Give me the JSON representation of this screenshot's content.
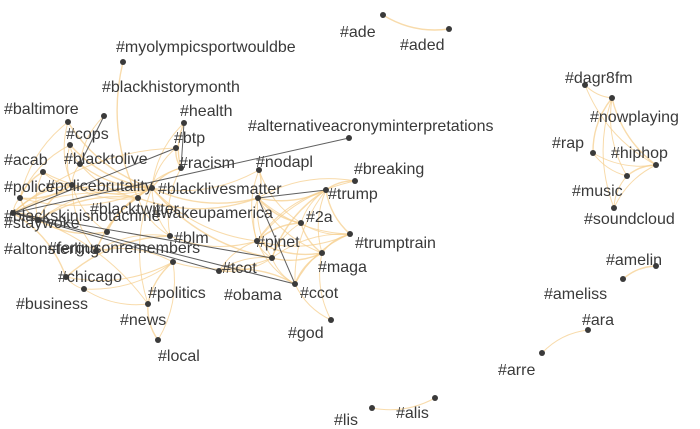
{
  "graph": {
    "edge_color": "#f5cf8f",
    "dark_edge_color": "#444444",
    "node_color": "#3a3a3a",
    "label_color": "#3a3a3a",
    "nodes": [
      {
        "id": "myolympicsportwouldbe",
        "label": "#myolympicsportwouldbe"
      },
      {
        "id": "blackhistorymonth",
        "label": "#blackhistorymonth"
      },
      {
        "id": "baltimore",
        "label": "#baltimore"
      },
      {
        "id": "health",
        "label": "#health"
      },
      {
        "id": "cops",
        "label": "#cops"
      },
      {
        "id": "btp",
        "label": "#btp"
      },
      {
        "id": "acab",
        "label": "#acab"
      },
      {
        "id": "blacktolive",
        "label": "#blacktolive"
      },
      {
        "id": "racism",
        "label": "#racism"
      },
      {
        "id": "police",
        "label": "#police"
      },
      {
        "id": "policebrutality",
        "label": "#policebrutality"
      },
      {
        "id": "blacklivesmatter",
        "label": "#blacklivesmatter"
      },
      {
        "id": "blackskinisnotacrime",
        "label": "#blackskinisnotacrime"
      },
      {
        "id": "blacktwitter",
        "label": "#blacktwitter"
      },
      {
        "id": "staywoke",
        "label": "#staywoke"
      },
      {
        "id": "wakeupamerica",
        "label": "#wakeupamerica"
      },
      {
        "id": "altonsterling",
        "label": "#altonsterling"
      },
      {
        "id": "fergusonremembers",
        "label": "#fergusonremembers"
      },
      {
        "id": "blm",
        "label": "#blm"
      },
      {
        "id": "chicago",
        "label": "#chicago"
      },
      {
        "id": "business",
        "label": "#business"
      },
      {
        "id": "politics",
        "label": "#politics"
      },
      {
        "id": "news",
        "label": "#news"
      },
      {
        "id": "local",
        "label": "#local"
      },
      {
        "id": "alternativeacronyminterpretations",
        "label": "#alternativeacronyminterpretations"
      },
      {
        "id": "nodapl",
        "label": "#nodapl"
      },
      {
        "id": "breaking",
        "label": "#breaking"
      },
      {
        "id": "trump",
        "label": "#trump"
      },
      {
        "id": "2a",
        "label": "#2a"
      },
      {
        "id": "pjnet",
        "label": "#pjnet"
      },
      {
        "id": "trumptrain",
        "label": "#trumptrain"
      },
      {
        "id": "tcot",
        "label": "#tcot"
      },
      {
        "id": "maga",
        "label": "#maga"
      },
      {
        "id": "obama",
        "label": "#obama"
      },
      {
        "id": "ccot",
        "label": "#ccot"
      },
      {
        "id": "god",
        "label": "#god"
      },
      {
        "id": "ade",
        "label": "#ade"
      },
      {
        "id": "aded",
        "label": "#aded"
      },
      {
        "id": "dagr8fm",
        "label": "#dagr8fm"
      },
      {
        "id": "nowplaying",
        "label": "#nowplaying"
      },
      {
        "id": "rap",
        "label": "#rap"
      },
      {
        "id": "hiphop",
        "label": "#hiphop"
      },
      {
        "id": "music",
        "label": "#music"
      },
      {
        "id": "soundcloud",
        "label": "#soundcloud"
      },
      {
        "id": "amelin",
        "label": "#amelin"
      },
      {
        "id": "ameliss",
        "label": "#ameliss"
      },
      {
        "id": "ara",
        "label": "#ara"
      },
      {
        "id": "arre",
        "label": "#arre"
      },
      {
        "id": "lis",
        "label": "#lis"
      },
      {
        "id": "alis",
        "label": "#alis"
      }
    ],
    "edges": [
      [
        "ade",
        "aded"
      ],
      [
        "lis",
        "alis"
      ],
      [
        "ara",
        "arre"
      ],
      [
        "amelin",
        "ameliss"
      ],
      [
        "dagr8fm",
        "nowplaying"
      ],
      [
        "dagr8fm",
        "hiphop"
      ],
      [
        "nowplaying",
        "hiphop"
      ],
      [
        "nowplaying",
        "music"
      ],
      [
        "nowplaying",
        "soundcloud"
      ],
      [
        "nowplaying",
        "rap"
      ],
      [
        "rap",
        "hiphop"
      ],
      [
        "rap",
        "music"
      ],
      [
        "hiphop",
        "music"
      ],
      [
        "hiphop",
        "soundcloud"
      ],
      [
        "music",
        "soundcloud"
      ],
      [
        "myolympicsportwouldbe",
        "blacktwitter"
      ],
      [
        "blackhistorymonth",
        "blacktolive"
      ],
      [
        "baltimore",
        "policebrutality"
      ],
      [
        "baltimore",
        "blacklivesmatter"
      ],
      [
        "baltimore",
        "police"
      ],
      [
        "health",
        "blacklivesmatter"
      ],
      [
        "health",
        "racism"
      ],
      [
        "cops",
        "policebrutality"
      ],
      [
        "cops",
        "police"
      ],
      [
        "cops",
        "blacklivesmatter"
      ],
      [
        "cops",
        "blacktolive"
      ],
      [
        "btp",
        "blacklivesmatter"
      ],
      [
        "btp",
        "racism"
      ],
      [
        "btp",
        "blackskinisnotacrime"
      ],
      [
        "acab",
        "policebrutality"
      ],
      [
        "acab",
        "police"
      ],
      [
        "acab",
        "blacklivesmatter"
      ],
      [
        "acab",
        "staywoke"
      ],
      [
        "blacktolive",
        "blacklivesmatter"
      ],
      [
        "blacktolive",
        "policebrutality"
      ],
      [
        "blacktolive",
        "blacktwitter"
      ],
      [
        "racism",
        "blacklivesmatter"
      ],
      [
        "racism",
        "blm"
      ],
      [
        "racism",
        "blacktwitter"
      ],
      [
        "police",
        "policebrutality"
      ],
      [
        "police",
        "blacklivesmatter"
      ],
      [
        "police",
        "blackskinisnotacrime"
      ],
      [
        "police",
        "staywoke"
      ],
      [
        "policebrutality",
        "blacklivesmatter"
      ],
      [
        "policebrutality",
        "blacktwitter"
      ],
      [
        "policebrutality",
        "blackskinisnotacrime"
      ],
      [
        "policebrutality",
        "altonsterling"
      ],
      [
        "policebrutality",
        "fergusonremembers"
      ],
      [
        "policebrutality",
        "staywoke"
      ],
      [
        "blacklivesmatter",
        "blacktwitter"
      ],
      [
        "blacklivesmatter",
        "blm"
      ],
      [
        "blacklivesmatter",
        "wakeupamerica"
      ],
      [
        "blacklivesmatter",
        "staywoke"
      ],
      [
        "blacklivesmatter",
        "blackskinisnotacrime"
      ],
      [
        "blacklivesmatter",
        "altonsterling"
      ],
      [
        "blacklivesmatter",
        "fergusonremembers"
      ],
      [
        "blacklivesmatter",
        "nodapl"
      ],
      [
        "blacklivesmatter",
        "tcot"
      ],
      [
        "blacklivesmatter",
        "pjnet"
      ],
      [
        "blacklivesmatter",
        "news"
      ],
      [
        "blacktwitter",
        "staywoke"
      ],
      [
        "blacktwitter",
        "blm"
      ],
      [
        "blacktwitter",
        "blackskinisnotacrime"
      ],
      [
        "blacktwitter",
        "wakeupamerica"
      ],
      [
        "blacktwitter",
        "fergusonremembers"
      ],
      [
        "staywoke",
        "blackskinisnotacrime"
      ],
      [
        "staywoke",
        "altonsterling"
      ],
      [
        "blm",
        "fergusonremembers"
      ],
      [
        "blm",
        "pjnet"
      ],
      [
        "blm",
        "chicago"
      ],
      [
        "chicago",
        "business"
      ],
      [
        "chicago",
        "politics"
      ],
      [
        "chicago",
        "blackskinisnotacrime"
      ],
      [
        "business",
        "politics"
      ],
      [
        "business",
        "news"
      ],
      [
        "politics",
        "news"
      ],
      [
        "politics",
        "fergusonremembers"
      ],
      [
        "politics",
        "tcot"
      ],
      [
        "news",
        "local"
      ],
      [
        "news",
        "blackskinisnotacrime"
      ],
      [
        "local",
        "politics"
      ],
      [
        "wakeupamerica",
        "2a"
      ],
      [
        "wakeupamerica",
        "pjnet"
      ],
      [
        "wakeupamerica",
        "tcot"
      ],
      [
        "wakeupamerica",
        "trump"
      ],
      [
        "wakeupamerica",
        "trumptrain"
      ],
      [
        "wakeupamerica",
        "maga"
      ],
      [
        "wakeupamerica",
        "nodapl"
      ],
      [
        "nodapl",
        "2a"
      ],
      [
        "nodapl",
        "pjnet"
      ],
      [
        "breaking",
        "trump"
      ],
      [
        "breaking",
        "pjnet"
      ],
      [
        "breaking",
        "wakeupamerica"
      ],
      [
        "trump",
        "trumptrain"
      ],
      [
        "trump",
        "pjnet"
      ],
      [
        "trump",
        "maga"
      ],
      [
        "trump",
        "tcot"
      ],
      [
        "trump",
        "2a"
      ],
      [
        "trump",
        "ccot"
      ],
      [
        "2a",
        "pjnet"
      ],
      [
        "2a",
        "tcot"
      ],
      [
        "2a",
        "trumptrain"
      ],
      [
        "2a",
        "maga"
      ],
      [
        "pjnet",
        "tcot"
      ],
      [
        "pjnet",
        "trumptrain"
      ],
      [
        "pjnet",
        "maga"
      ],
      [
        "pjnet",
        "ccot"
      ],
      [
        "pjnet",
        "obama"
      ],
      [
        "trumptrain",
        "maga"
      ],
      [
        "trumptrain",
        "tcot"
      ],
      [
        "trumptrain",
        "ccot"
      ],
      [
        "tcot",
        "maga"
      ],
      [
        "tcot",
        "ccot"
      ],
      [
        "tcot",
        "obama"
      ],
      [
        "maga",
        "ccot"
      ],
      [
        "maga",
        "god"
      ],
      [
        "ccot",
        "god"
      ],
      [
        "ccot",
        "obama"
      ],
      [
        "obama",
        "tcot"
      ]
    ],
    "dark_edges": [
      [
        "blackhistorymonth",
        "blacktolive"
      ],
      [
        "health",
        "racism"
      ],
      [
        "btp",
        "blackskinisnotacrime"
      ],
      [
        "alternativeacronyminterpretations",
        "blackskinisnotacrime"
      ],
      [
        "trump",
        "wakeupamerica"
      ],
      [
        "blackskinisnotacrime",
        "tcot"
      ],
      [
        "blackskinisnotacrime",
        "ccot"
      ],
      [
        "blackskinisnotacrime",
        "obama"
      ],
      [
        "wakeupamerica",
        "ccot"
      ]
    ]
  }
}
